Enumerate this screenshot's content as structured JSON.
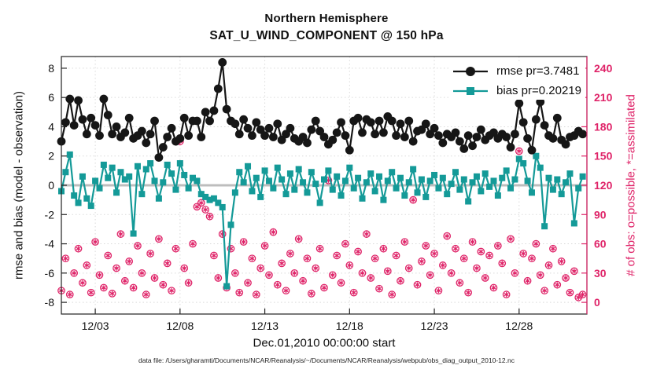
{
  "footer": {
    "text": "data file: /Users/gharamti/Documents/NCAR/Reanalysis/~/Documents/NCAR/Reanalysis/webpub/obs_diag_output_2010-12.nc"
  },
  "stats": {
    "rmse_pr": 3.7481,
    "bias_pr": 0.20219
  },
  "chart_data": {
    "type": "line",
    "title": "Northern Hemisphere",
    "subtitle": "SAT_U_WIND_COMPONENT @ 150 hPa",
    "xlabel": "Dec.01,2010 00:00:00 start",
    "ylabel_left": "rmse and bias (model - observation)",
    "ylabel_right": "# of obs: o=possible, *=assimilated",
    "legend_position": "top-right-inside",
    "grid": "dotted",
    "zero_line": true,
    "xlim_days": [
      0,
      31
    ],
    "ylim_left": [
      -8.8,
      8.8
    ],
    "yticks_left": [
      -8,
      -6,
      -4,
      -2,
      0,
      2,
      4,
      6,
      8
    ],
    "yticks_right": [
      0,
      30,
      60,
      90,
      120,
      150,
      180,
      210,
      240
    ],
    "xticks": [
      {
        "day": 2,
        "label": "12/03"
      },
      {
        "day": 7,
        "label": "12/08"
      },
      {
        "day": 12,
        "label": "12/13"
      },
      {
        "day": 17,
        "label": "12/18"
      },
      {
        "day": 22,
        "label": "12/23"
      },
      {
        "day": 27,
        "label": "12/28"
      }
    ],
    "colors": {
      "rmse": "#161616",
      "bias": "#149a98",
      "obs": "#df2368",
      "zero_line": "#bdbdbd",
      "grid": "#d9d9d9"
    },
    "x_days": [
      0,
      0.25,
      0.5,
      0.75,
      1,
      1.25,
      1.5,
      1.75,
      2,
      2.25,
      2.5,
      2.75,
      3,
      3.25,
      3.5,
      3.75,
      4,
      4.25,
      4.5,
      4.75,
      5,
      5.25,
      5.5,
      5.75,
      6,
      6.25,
      6.5,
      6.75,
      7,
      7.25,
      7.5,
      7.75,
      8,
      8.25,
      8.5,
      8.75,
      9,
      9.25,
      9.5,
      9.75,
      10,
      10.25,
      10.5,
      10.75,
      11,
      11.25,
      11.5,
      11.75,
      12,
      12.25,
      12.5,
      12.75,
      13,
      13.25,
      13.5,
      13.75,
      14,
      14.25,
      14.5,
      14.75,
      15,
      15.25,
      15.5,
      15.75,
      16,
      16.25,
      16.5,
      16.75,
      17,
      17.25,
      17.5,
      17.75,
      18,
      18.25,
      18.5,
      18.75,
      19,
      19.25,
      19.5,
      19.75,
      20,
      20.25,
      20.5,
      20.75,
      21,
      21.25,
      21.5,
      21.75,
      22,
      22.25,
      22.5,
      22.75,
      23,
      23.25,
      23.5,
      23.75,
      24,
      24.25,
      24.5,
      24.75,
      25,
      25.25,
      25.5,
      25.75,
      26,
      26.25,
      26.5,
      26.75,
      27,
      27.25,
      27.5,
      27.75,
      28,
      28.25,
      28.5,
      28.75,
      29,
      29.25,
      29.5,
      29.75,
      30,
      30.25,
      30.5,
      30.75
    ],
    "series": [
      {
        "name": "rmse",
        "legend": "rmse pr=3.7481",
        "axis": "left",
        "marker": "filled-circle",
        "color": "#161616",
        "values": [
          3.0,
          4.3,
          5.9,
          4.1,
          5.8,
          4.5,
          3.5,
          4.6,
          4.1,
          3.4,
          5.9,
          4.8,
          3.5,
          4.0,
          3.3,
          3.6,
          4.6,
          3.2,
          3.4,
          3.7,
          2.9,
          3.5,
          4.4,
          1.9,
          2.6,
          3.3,
          3.9,
          3.0,
          3.2,
          4.6,
          3.4,
          4.4,
          4.4,
          3.3,
          5.0,
          4.4,
          5.1,
          6.6,
          8.4,
          5.2,
          4.4,
          4.2,
          3.5,
          4.5,
          3.9,
          3.4,
          4.3,
          3.8,
          3.4,
          3.9,
          3.3,
          4.2,
          3.1,
          3.5,
          3.9,
          3.2,
          3.0,
          3.3,
          2.9,
          3.8,
          4.4,
          3.7,
          3.3,
          2.8,
          3.1,
          3.6,
          4.3,
          3.4,
          2.4,
          4.4,
          4.6,
          3.6,
          4.5,
          4.3,
          3.5,
          4.4,
          3.6,
          4.7,
          4.4,
          3.4,
          4.2,
          3.3,
          4.4,
          3.0,
          3.7,
          3.8,
          4.2,
          3.5,
          3.9,
          3.4,
          2.9,
          3.5,
          3.3,
          3.6,
          3.0,
          2.5,
          3.4,
          2.7,
          3.3,
          3.8,
          3.1,
          3.4,
          3.6,
          3.2,
          3.5,
          3.3,
          2.6,
          3.5,
          5.6,
          4.3,
          3.2,
          2.4,
          4.5,
          5.7,
          4.1,
          3.4,
          3.2,
          4.6,
          3.1,
          2.8,
          3.3,
          3.4,
          3.7,
          3.5
        ]
      },
      {
        "name": "bias",
        "legend": "bias pr=0.20219",
        "axis": "left",
        "marker": "filled-square",
        "color": "#149a98",
        "values": [
          -0.4,
          0.9,
          2.1,
          -0.7,
          -1.2,
          0.6,
          -0.9,
          -1.4,
          0.3,
          -0.2,
          1.4,
          0.5,
          1.2,
          -0.5,
          0.9,
          0.4,
          0.6,
          -3.3,
          1.3,
          -0.6,
          1.1,
          1.5,
          0.3,
          -0.9,
          0.2,
          1.4,
          0.8,
          -0.3,
          1.5,
          0.7,
          -0.2,
          0.5,
          0.3,
          -0.6,
          -0.8,
          -1.0,
          -0.9,
          -1.2,
          -1.5,
          -6.9,
          -2.7,
          -0.5,
          0.9,
          0.2,
          1.3,
          -0.4,
          0.5,
          -0.8,
          1.0,
          0.3,
          -0.2,
          1.2,
          0.4,
          -0.6,
          0.8,
          -0.3,
          1.1,
          0.2,
          -0.5,
          0.9,
          0.1,
          -1.2,
          0.4,
          1.0,
          -0.3,
          0.6,
          -0.7,
          0.3,
          1.2,
          -0.2,
          0.5,
          -0.9,
          0.2,
          0.8,
          -0.4,
          0.6,
          -1.0,
          0.3,
          0.9,
          -0.2,
          0.5,
          -0.7,
          0.2,
          1.1,
          -0.5,
          0.4,
          -0.8,
          0.3,
          0.7,
          -0.2,
          0.5,
          -0.6,
          0.1,
          0.9,
          -0.3,
          0.4,
          -1.1,
          0.2,
          0.6,
          -0.4,
          0.8,
          -0.1,
          0.3,
          -0.7,
          0.5,
          1.0,
          -0.2,
          0.4,
          1.8,
          1.5,
          0.3,
          -0.5,
          2.0,
          1.2,
          -2.8,
          0.5,
          -0.3,
          0.4,
          -0.6,
          0.2,
          0.8,
          -2.6,
          -0.2,
          0.6
        ]
      },
      {
        "name": "obs-count",
        "legend": "# of obs: o=possible, *=assimilated",
        "axis": "right",
        "marker": "circled-asterisk",
        "color": "#df2368",
        "values": [
          12,
          45,
          8,
          30,
          55,
          20,
          38,
          10,
          62,
          28,
          15,
          48,
          9,
          35,
          70,
          22,
          42,
          15,
          58,
          30,
          8,
          50,
          25,
          65,
          18,
          40,
          12,
          55,
          165,
          35,
          20,
          60,
          98,
          102,
          95,
          88,
          48,
          25,
          70,
          15,
          55,
          30,
          10,
          62,
          20,
          45,
          8,
          35,
          58,
          28,
          72,
          18,
          40,
          12,
          50,
          30,
          65,
          22,
          45,
          9,
          35,
          55,
          15,
          125,
          28,
          48,
          20,
          60,
          38,
          10,
          52,
          30,
          70,
          25,
          45,
          14,
          55,
          32,
          8,
          48,
          22,
          62,
          35,
          105,
          18,
          42,
          58,
          28,
          50,
          12,
          38,
          68,
          30,
          55,
          20,
          45,
          10,
          62,
          35,
          52,
          25,
          48,
          15,
          58,
          40,
          8,
          65,
          30,
          155,
          50,
          22,
          45,
          60,
          28,
          12,
          38,
          55,
          18,
          42,
          25,
          10,
          32,
          5,
          8
        ]
      }
    ]
  }
}
